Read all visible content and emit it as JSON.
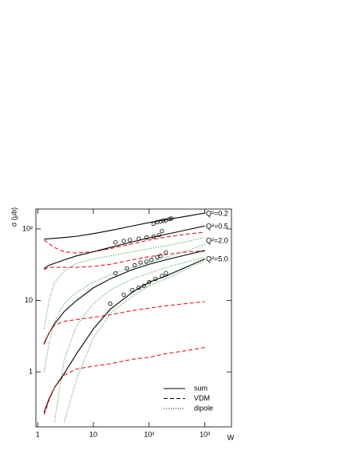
{
  "chart_data": {
    "type": "line",
    "xlabel": "W",
    "ylabel": "σ (μb)",
    "log_x": true,
    "log_y": true,
    "xlim": [
      0.93,
      3000
    ],
    "ylim": [
      0.17,
      190
    ],
    "xticks": [
      1,
      10,
      {
        "value": 100,
        "label": "10²"
      },
      {
        "value": 1000,
        "label": "10³"
      }
    ],
    "yticks": [
      1,
      10,
      {
        "value": 100,
        "label": "10²"
      }
    ],
    "legend_position": "lower right",
    "legend": [
      {
        "name": "sum",
        "color": "#000000",
        "dash": "solid"
      },
      {
        "name": "VDM",
        "color": "#e8141e",
        "dash": "5,3"
      },
      {
        "name": "dipole",
        "color": "#1a9a2a",
        "dash": "1,2"
      }
    ],
    "x": [
      1.3,
      1.6,
      2,
      3,
      5,
      10,
      20,
      50,
      100,
      200,
      500,
      1000
    ],
    "groups": [
      {
        "label": "Q²=0.2",
        "curves": [
          [
            72,
            73,
            74,
            76,
            79,
            86,
            95,
            110,
            123,
            135,
            152,
            167
          ],
          [
            70,
            62,
            55,
            48,
            46,
            48,
            53,
            62,
            70,
            77,
            85,
            90
          ],
          [
            4,
            10,
            18,
            26,
            33,
            38,
            42,
            48,
            53,
            58,
            67,
            77
          ]
        ],
        "points": {
          "x": [
            120,
            140,
            160,
            180,
            200,
            230,
            250
          ],
          "values": [
            118,
            125,
            128,
            132,
            132,
            138,
            140
          ]
        }
      },
      {
        "label": "Q²=0.5",
        "curves": [
          [
            28,
            31,
            33,
            37,
            42,
            48,
            55,
            66,
            75,
            84,
            98,
            110
          ],
          [
            27,
            29,
            29,
            29,
            29,
            30,
            32,
            37,
            41,
            44,
            48,
            49
          ],
          [
            1,
            2.5,
            5,
            9,
            13,
            18,
            23,
            29,
            34,
            40,
            50,
            61
          ]
        ],
        "points": {
          "x": [
            25,
            35,
            45,
            65,
            90,
            120,
            150,
            170
          ],
          "values": [
            65,
            68,
            70,
            73,
            76,
            78,
            82,
            93
          ]
        }
      },
      {
        "label": "Q²=2.0",
        "curves": [
          [
            2.5,
            3.5,
            4.7,
            7,
            10,
            15,
            20,
            27,
            32,
            37,
            44,
            50
          ],
          [
            2.4,
            3.5,
            4.5,
            5.1,
            5.4,
            5.8,
            6.3,
            7.2,
            7.8,
            8.4,
            9.1,
            9.6
          ],
          [
            null,
            null,
            0.2,
            1.5,
            4.5,
            9,
            14,
            20,
            24,
            29,
            35,
            40
          ]
        ],
        "points": {
          "x": [
            25,
            40,
            55,
            70,
            90,
            110,
            140,
            160,
            200
          ],
          "values": [
            24,
            28,
            31,
            34,
            35,
            37,
            40,
            42,
            47
          ]
        }
      },
      {
        "label": "Q²=5.0",
        "curves": [
          [
            0.27,
            0.42,
            0.6,
            0.95,
            1.8,
            4,
            7.5,
            13,
            18,
            22,
            30,
            38
          ],
          [
            0.25,
            0.4,
            0.6,
            0.9,
            1.1,
            1.2,
            1.3,
            1.5,
            1.6,
            1.8,
            2.0,
            2.2
          ],
          [
            null,
            null,
            null,
            0.2,
            0.8,
            3,
            6.5,
            11.5,
            16,
            20,
            28,
            36
          ]
        ],
        "points": {
          "x": [
            20,
            35,
            50,
            65,
            80,
            100,
            130,
            170,
            200
          ],
          "values": [
            9,
            12,
            14,
            15,
            16,
            18,
            20,
            22,
            24
          ]
        }
      }
    ]
  }
}
